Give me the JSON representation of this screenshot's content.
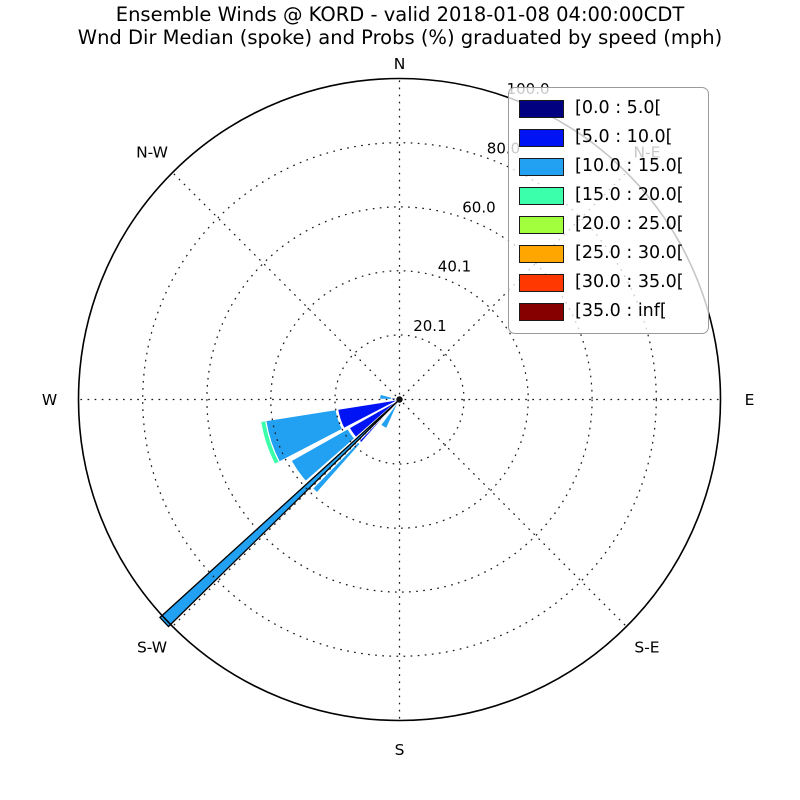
{
  "header": {
    "title": "Ensemble Winds @ KORD - valid 2018-01-08 04:00:00CDT",
    "subtitle": "Wnd Dir Median (spoke) and Probs (%) graduated by speed (mph)"
  },
  "legend": {
    "bins": [
      {
        "label": "[0.0 : 5.0[",
        "color": "#000080"
      },
      {
        "label": "[5.0 : 10.0[",
        "color": "#0013f5"
      },
      {
        "label": "[10.0 : 15.0[",
        "color": "#22a1f2"
      },
      {
        "label": "[15.0 : 20.0[",
        "color": "#3cffac"
      },
      {
        "label": "[20.0 : 25.0[",
        "color": "#a2ff3e"
      },
      {
        "label": "[25.0 : 30.0[",
        "color": "#ffa600"
      },
      {
        "label": "[30.0 : 35.0[",
        "color": "#ff3700"
      },
      {
        "label": "[35.0 : inf[",
        "color": "#860000"
      }
    ]
  },
  "chart_data": {
    "type": "windrose-polar-stacked-wedges",
    "value_units": "probability %",
    "speed_units": "mph",
    "radial_ticks": [
      {
        "label": "20.1",
        "value": 20.1
      },
      {
        "label": "40.1",
        "value": 40.1
      },
      {
        "label": "60.0",
        "value": 60.0
      },
      {
        "label": "80.0",
        "value": 80.0
      },
      {
        "label": "100.0",
        "value": 100.0
      }
    ],
    "radial_max": 100.0,
    "radial_tick_bearing_deg": 22.5,
    "compass_labels": [
      {
        "label": "N",
        "bearing": 0,
        "behind_legend": false
      },
      {
        "label": "N-E",
        "bearing": 45,
        "behind_legend": true
      },
      {
        "label": "E",
        "bearing": 90,
        "behind_legend": false
      },
      {
        "label": "S-E",
        "bearing": 135,
        "behind_legend": false
      },
      {
        "label": "S",
        "bearing": 180,
        "behind_legend": false
      },
      {
        "label": "S-W",
        "bearing": 225,
        "behind_legend": false
      },
      {
        "label": "W",
        "bearing": 270,
        "behind_legend": false
      },
      {
        "label": "N-W",
        "bearing": 315,
        "behind_legend": false
      }
    ],
    "grid_spoke_step_deg": 45,
    "sectors": [
      {
        "direction": "SSW",
        "arc_start": 204.0,
        "arc_end": 216.5,
        "segments": [
          {
            "bin_index": 2,
            "bin": "[10.0 : 15.0[",
            "from": 0,
            "to": 9.9
          }
        ]
      },
      {
        "direction": "SW",
        "arc_start": 221.5,
        "arc_end": 240.5,
        "segments": [
          {
            "bin_index": 1,
            "bin": "[5.0 : 10.0[",
            "from": 0,
            "to": 18.0
          },
          {
            "bin_index": 2,
            "bin": "[10.0 : 15.0[",
            "from": 18.5,
            "to": 38.8
          }
        ]
      },
      {
        "direction": "WSW",
        "arc_start": 242.5,
        "arc_end": 261.0,
        "segments": [
          {
            "bin_index": 1,
            "bin": "[5.0 : 10.0[",
            "from": 0,
            "to": 19.5
          },
          {
            "bin_index": 2,
            "bin": "[10.0 : 15.0[",
            "from": 20.0,
            "to": 42.2
          },
          {
            "bin_index": 3,
            "bin": "[15.0 : 20.0[",
            "from": 42.2,
            "to": 43.8
          }
        ]
      },
      {
        "direction": "W",
        "arc_start": 270.5,
        "arc_end": 285.5,
        "segments": [
          {
            "bin_index": 1,
            "bin": "[5.0 : 10.0[",
            "from": 0,
            "to": 2.5
          },
          {
            "bin_index": 2,
            "bin": "[10.0 : 15.0[",
            "from": 2.5,
            "to": 6.2
          }
        ]
      }
    ],
    "median_spoke": {
      "bearing": 226.6,
      "width_deg": 2.2,
      "length": 100.9,
      "bin_index": 2,
      "bin": "[10.0 : 15.0["
    }
  },
  "style_colors": {
    "grid": "#1a1a1a",
    "outer_circle": "#000000",
    "muted_label": "#9e9e9e",
    "background": "#ffffff"
  }
}
